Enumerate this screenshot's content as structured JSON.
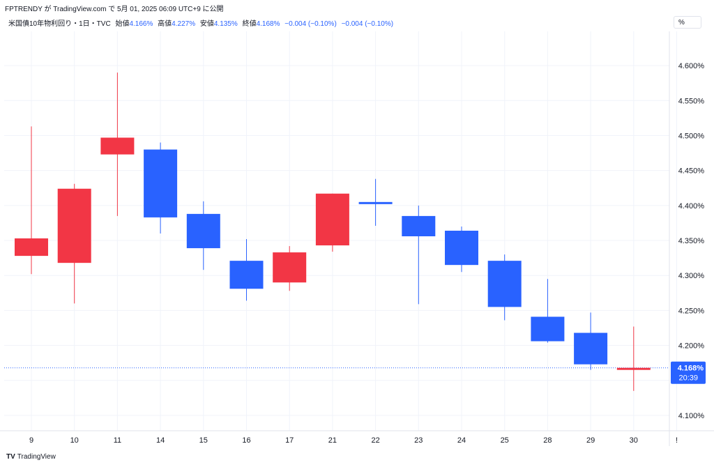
{
  "header": {
    "publish_line": "FPTRENDY が TradingView.com で 5月 01, 2025 06:09 UTC+9 に公開",
    "symbol": "米国債10年物利回り・1日・TVC",
    "open_label": "始値",
    "open_value": "4.166%",
    "high_label": "高値",
    "high_value": "4.227%",
    "low_label": "安値",
    "low_value": "4.135%",
    "close_label": "終値",
    "close_value": "4.168%",
    "change": "−0.004 (−0.10%)",
    "change2": "−0.004 (−0.10%)"
  },
  "unit_button": "%",
  "footer": {
    "brand": "TradingView",
    "logo": "TV"
  },
  "price_label": {
    "value": "4.168%",
    "countdown": "20:39"
  },
  "colors": {
    "up": "#f23645",
    "down": "#2962ff",
    "grid": "#f0f3fa",
    "text": "#131722"
  },
  "chart_data": {
    "type": "candlestick",
    "ylim": [
      4.09,
      4.625
    ],
    "yticks": [
      "4.100%",
      "4.150%",
      "4.200%",
      "4.250%",
      "4.300%",
      "4.350%",
      "4.400%",
      "4.450%",
      "4.500%",
      "4.550%",
      "4.600%"
    ],
    "categories": [
      "9",
      "10",
      "11",
      "14",
      "15",
      "16",
      "17",
      "21",
      "22",
      "23",
      "24",
      "25",
      "28",
      "29",
      "30",
      "!"
    ],
    "candles": [
      {
        "x": "9",
        "open": 4.328,
        "high": 4.513,
        "low": 4.302,
        "close": 4.353
      },
      {
        "x": "10",
        "open": 4.318,
        "high": 4.431,
        "low": 4.26,
        "close": 4.424
      },
      {
        "x": "11",
        "open": 4.473,
        "high": 4.59,
        "low": 4.385,
        "close": 4.497
      },
      {
        "x": "14",
        "open": 4.48,
        "high": 4.49,
        "low": 4.36,
        "close": 4.383
      },
      {
        "x": "15",
        "open": 4.388,
        "high": 4.406,
        "low": 4.308,
        "close": 4.339
      },
      {
        "x": "16",
        "open": 4.321,
        "high": 4.352,
        "low": 4.264,
        "close": 4.281
      },
      {
        "x": "17",
        "open": 4.29,
        "high": 4.342,
        "low": 4.278,
        "close": 4.333
      },
      {
        "x": "21",
        "open": 4.343,
        "high": 4.417,
        "low": 4.334,
        "close": 4.417
      },
      {
        "x": "22",
        "open": 4.405,
        "high": 4.438,
        "low": 4.371,
        "close": 4.402
      },
      {
        "x": "23",
        "open": 4.385,
        "high": 4.4,
        "low": 4.259,
        "close": 4.356
      },
      {
        "x": "24",
        "open": 4.364,
        "high": 4.37,
        "low": 4.305,
        "close": 4.315
      },
      {
        "x": "25",
        "open": 4.321,
        "high": 4.33,
        "low": 4.236,
        "close": 4.255
      },
      {
        "x": "28",
        "open": 4.241,
        "high": 4.295,
        "low": 4.204,
        "close": 4.206
      },
      {
        "x": "29",
        "open": 4.218,
        "high": 4.247,
        "low": 4.165,
        "close": 4.173
      },
      {
        "x": "30",
        "open": 4.166,
        "high": 4.227,
        "low": 4.135,
        "close": 4.168
      }
    ],
    "last_price": 4.168
  }
}
